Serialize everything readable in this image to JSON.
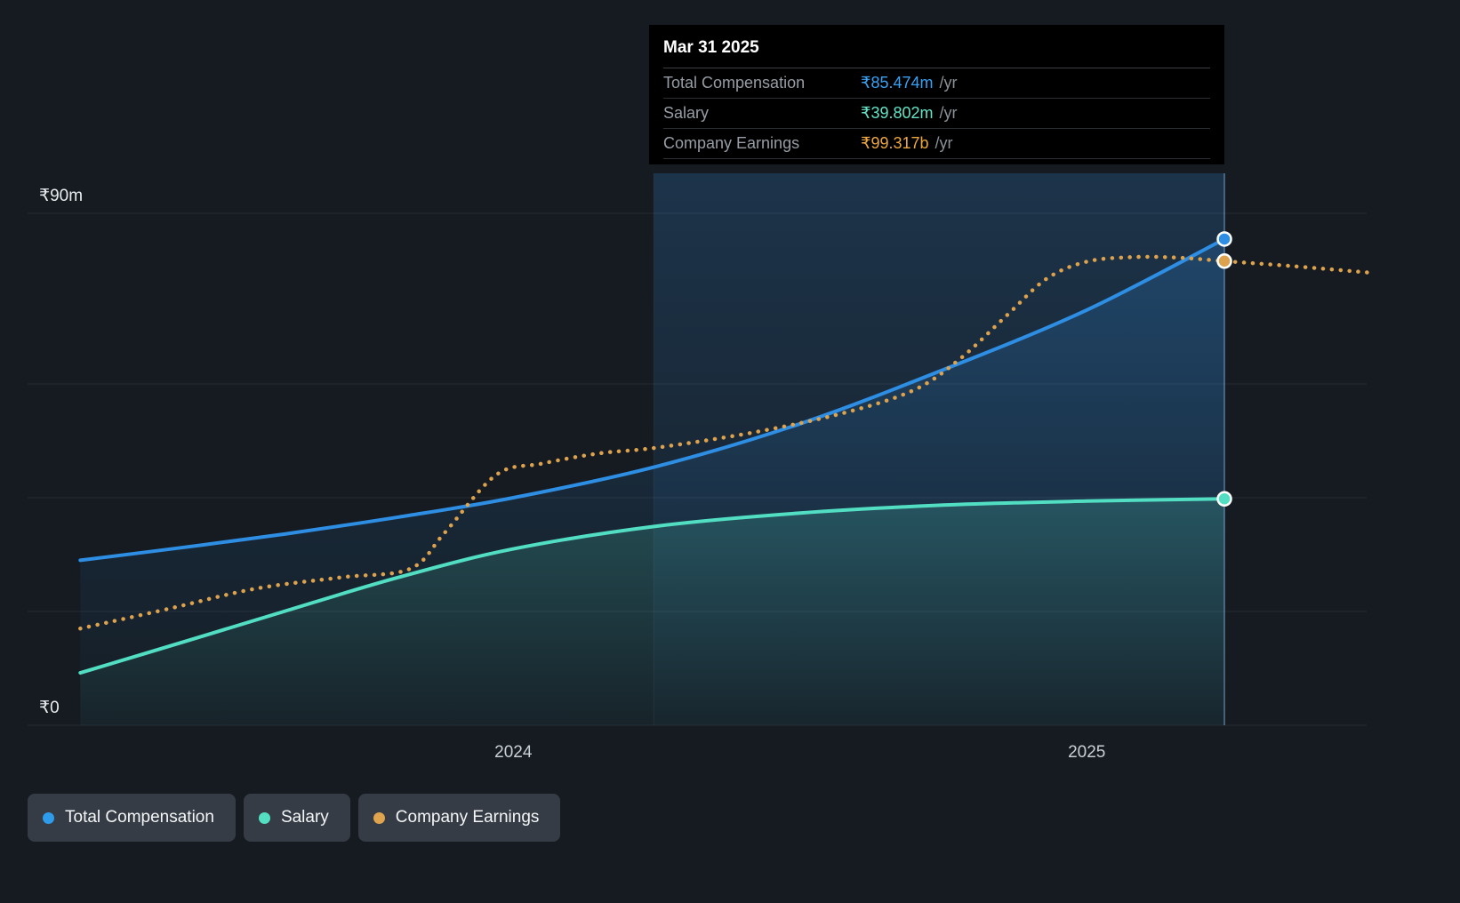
{
  "page": {
    "background": "#151b21"
  },
  "tooltip": {
    "date": "Mar 31 2025",
    "rows": [
      {
        "label": "Total Compensation",
        "value": "₹85.474m",
        "suffix": "/yr",
        "color": "#39a1f4"
      },
      {
        "label": "Salary",
        "value": "₹39.802m",
        "suffix": "/yr",
        "color": "#64e3c6"
      },
      {
        "label": "Company Earnings",
        "value": "₹99.317b",
        "suffix": "/yr",
        "color": "#eda73f"
      }
    ]
  },
  "legend": [
    {
      "label": "Total Compensation",
      "color": "#2f9ceb"
    },
    {
      "label": "Salary",
      "color": "#55dfc2"
    },
    {
      "label": "Company Earnings",
      "color": "#e0a44e"
    }
  ],
  "chart_data": {
    "type": "line",
    "x_domain": [
      2023.153,
      2025.488
    ],
    "y_domain": [
      0,
      90
    ],
    "y_unit": "₹m",
    "grid": true,
    "legend_position": "bottom-left",
    "company_earnings_plotted_on_separate_scale": true,
    "y_ticks": [
      {
        "value": 0,
        "label": "₹0"
      },
      {
        "value": 20
      },
      {
        "value": 40
      },
      {
        "value": 60
      },
      {
        "value": 90,
        "label": "₹90m"
      }
    ],
    "x_ticks": [
      {
        "year": 2024,
        "label": "2024"
      },
      {
        "year": 2025,
        "label": "2025"
      }
    ],
    "highlight_band": {
      "from": 2024.245,
      "to": 2025.24,
      "color": "#3482cd"
    },
    "marker_x": 2025.24,
    "series": [
      {
        "name": "Total Compensation",
        "color": "#2e8ee4",
        "style": "solid",
        "area": true,
        "marker_value": 85.474,
        "points": [
          [
            2023.245,
            29
          ],
          [
            2023.42,
            31.2
          ],
          [
            2023.6,
            33.6
          ],
          [
            2023.8,
            36.6
          ],
          [
            2024.0,
            40
          ],
          [
            2024.25,
            45.5
          ],
          [
            2024.5,
            53
          ],
          [
            2024.75,
            62.5
          ],
          [
            2025.0,
            73
          ],
          [
            2025.24,
            85.474
          ]
        ]
      },
      {
        "name": "Salary",
        "color": "#52dec2",
        "style": "solid",
        "area": true,
        "marker_value": 39.802,
        "points": [
          [
            2023.245,
            9.2
          ],
          [
            2023.42,
            14.5
          ],
          [
            2023.6,
            20
          ],
          [
            2023.8,
            26
          ],
          [
            2024.0,
            31
          ],
          [
            2024.25,
            35
          ],
          [
            2024.5,
            37.3
          ],
          [
            2024.75,
            38.7
          ],
          [
            2025.0,
            39.4
          ],
          [
            2025.24,
            39.802
          ]
        ]
      },
      {
        "name": "Company Earnings",
        "color": "#dda24d",
        "style": "dotted",
        "area": false,
        "marker_value": 81.6,
        "points": [
          [
            2023.245,
            17
          ],
          [
            2023.4,
            20.5
          ],
          [
            2023.55,
            24
          ],
          [
            2023.7,
            26
          ],
          [
            2023.82,
            27.5
          ],
          [
            2023.88,
            33.8
          ],
          [
            2023.97,
            44
          ],
          [
            2024.05,
            46
          ],
          [
            2024.15,
            47.8
          ],
          [
            2024.25,
            48.8
          ],
          [
            2024.42,
            51.5
          ],
          [
            2024.58,
            55
          ],
          [
            2024.7,
            59
          ],
          [
            2024.78,
            64.5
          ],
          [
            2024.86,
            72
          ],
          [
            2024.93,
            78.5
          ],
          [
            2025.0,
            81.5
          ],
          [
            2025.08,
            82.3
          ],
          [
            2025.16,
            82.2
          ],
          [
            2025.24,
            81.6
          ],
          [
            2025.36,
            80.7
          ],
          [
            2025.49,
            79.6
          ]
        ]
      }
    ]
  }
}
